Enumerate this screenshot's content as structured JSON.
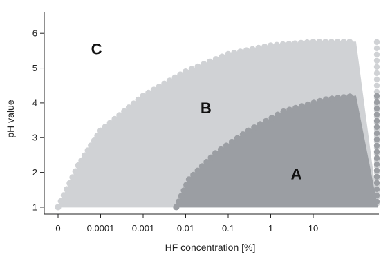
{
  "chart_data": {
    "type": "area",
    "xlabel": "HF concentration [%]",
    "ylabel": "pH value",
    "x_scale": "log",
    "x_tick_labels": [
      "0",
      "0.0001",
      "0.001",
      "0.01",
      "0.1",
      "1",
      "10"
    ],
    "y_ticks": [
      1,
      2,
      3,
      4,
      5,
      6
    ],
    "ylim": [
      0.8,
      6.6
    ],
    "grid": false,
    "legend": "none",
    "regions": [
      {
        "label": "C",
        "color": "#ffffff",
        "label_at": {
          "x": 8e-05,
          "y": 5.4
        }
      },
      {
        "label": "B",
        "color": "#d0d2d5",
        "boundary": [
          {
            "x": 1e-05,
            "y": 1.0
          },
          {
            "x": 3e-05,
            "y": 2.2
          },
          {
            "x": 0.0001,
            "y": 3.2
          },
          {
            "x": 0.001,
            "y": 4.2
          },
          {
            "x": 0.01,
            "y": 4.9
          },
          {
            "x": 0.1,
            "y": 5.4
          },
          {
            "x": 1,
            "y": 5.65
          },
          {
            "x": 10,
            "y": 5.75
          },
          {
            "x": 100,
            "y": 5.75
          }
        ],
        "label_at": {
          "x": 0.03,
          "y": 3.7
        }
      },
      {
        "label": "A",
        "color": "#9b9ea3",
        "boundary": [
          {
            "x": 0.006,
            "y": 1.0
          },
          {
            "x": 0.012,
            "y": 1.8
          },
          {
            "x": 0.05,
            "y": 2.55
          },
          {
            "x": 0.3,
            "y": 3.2
          },
          {
            "x": 2,
            "y": 3.75
          },
          {
            "x": 20,
            "y": 4.1
          },
          {
            "x": 100,
            "y": 4.2
          }
        ],
        "label_at": {
          "x": 4,
          "y": 1.8
        }
      }
    ]
  }
}
